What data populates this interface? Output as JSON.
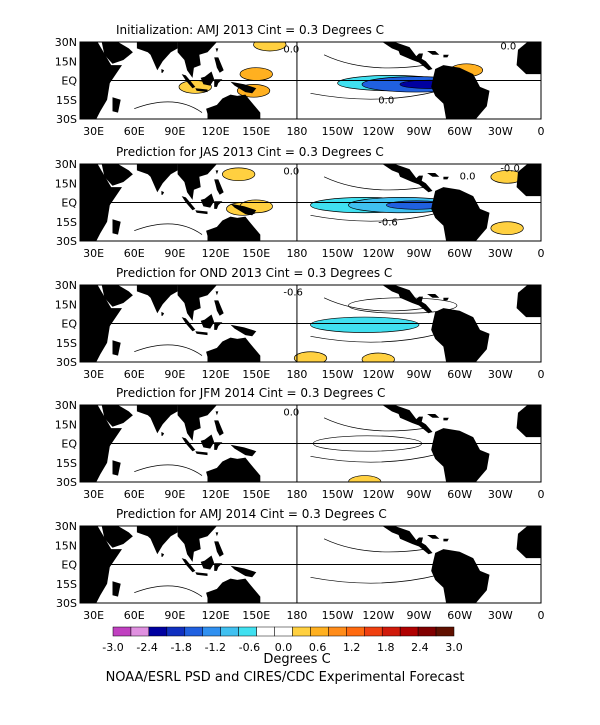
{
  "chart_data": [
    {
      "type": "heatmap",
      "title": "Initialization: AMJ 2013   Cint = 0.3 Degrees C",
      "contour_labels": [
        "0.0",
        "0.0",
        "0.0"
      ],
      "anomalies": [
        {
          "lon": 150,
          "lat": 5,
          "value": 0.6
        },
        {
          "lon": 148,
          "lat": -8,
          "value": 0.6
        },
        {
          "lon": 105,
          "lat": -5,
          "value": 0.4
        },
        {
          "lon": 305,
          "lat": 8,
          "value": 0.6
        },
        {
          "lon": 160,
          "lat": 28,
          "value": 0.4
        },
        {
          "lon": 250,
          "lat": -2,
          "value": -0.6
        },
        {
          "lon": 268,
          "lat": -3,
          "value": -1.5
        }
      ]
    },
    {
      "type": "heatmap",
      "title": "Prediction for JAS 2013   Cint = 0.3 Degrees C",
      "contour_labels": [
        "0.0",
        "-0.0",
        "-0.6",
        "0.0"
      ],
      "anomalies": [
        {
          "lon": 137,
          "lat": 22,
          "value": 0.4
        },
        {
          "lon": 140,
          "lat": -5,
          "value": 0.4
        },
        {
          "lon": 150,
          "lat": -3,
          "value": 0.4
        },
        {
          "lon": 335,
          "lat": 20,
          "value": 0.4
        },
        {
          "lon": 335,
          "lat": -20,
          "value": 0.4
        },
        {
          "lon": 230,
          "lat": -2,
          "value": -0.5
        },
        {
          "lon": 258,
          "lat": -2,
          "value": -0.9
        }
      ]
    },
    {
      "type": "heatmap",
      "title": "Prediction for OND 2013   Cint = 0.3 Degrees C",
      "contour_labels": [
        "-0.6"
      ],
      "anomalies": [
        {
          "lon": 230,
          "lat": -1,
          "value": -0.6
        },
        {
          "lon": 258,
          "lat": 14,
          "value": -0.4
        },
        {
          "lon": 190,
          "lat": -27,
          "value": 0.4
        },
        {
          "lon": 240,
          "lat": -28,
          "value": 0.4
        }
      ]
    },
    {
      "type": "heatmap",
      "title": "Prediction for JFM 2014   Cint = 0.3 Degrees C",
      "contour_labels": [
        "0.0"
      ],
      "anomalies": [
        {
          "lon": 232,
          "lat": 0,
          "value": -0.4
        },
        {
          "lon": 230,
          "lat": -30,
          "value": 0.4
        }
      ]
    },
    {
      "type": "heatmap",
      "title": "Prediction for AMJ 2014   Cint = 0.3 Degrees C",
      "contour_labels": [],
      "anomalies": []
    }
  ],
  "axes": {
    "lat_ticks": [
      "30N",
      "15N",
      "EQ",
      "15S",
      "30S"
    ],
    "lon_ticks": [
      "30E",
      "60E",
      "90E",
      "120E",
      "150E",
      "180",
      "150W",
      "120W",
      "90W",
      "60W",
      "30W",
      "0"
    ]
  },
  "colorbar": {
    "labels": [
      "-3.0",
      "-2.4",
      "-1.8",
      "-1.2",
      "-0.6",
      "0.0",
      "0.6",
      "1.2",
      "1.8",
      "2.4",
      "3.0"
    ],
    "colors": [
      "#c040c0",
      "#e090e0",
      "#0000a0",
      "#1030c0",
      "#2060e0",
      "#3090f0",
      "#40c0f0",
      "#40e0f0",
      "#ffffff",
      "#ffffff",
      "#ffd040",
      "#ffb020",
      "#ff8c1a",
      "#ff6a10",
      "#f04010",
      "#d01a0a",
      "#b00000",
      "#800000",
      "#601000"
    ],
    "units": "Degrees C"
  },
  "footer": "NOAA/ESRL PSD and CIRES/CDC Experimental Forecast"
}
